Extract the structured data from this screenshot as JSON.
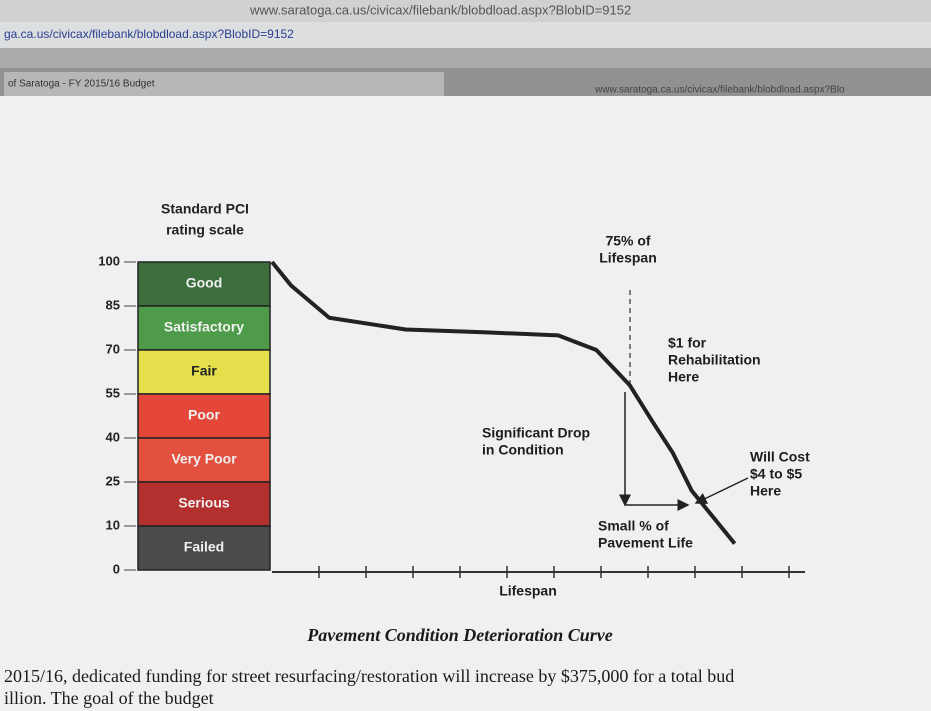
{
  "browser": {
    "url_top": "www.saratoga.ca.us/civicax/filebank/blobdload.aspx?BlobID=9152",
    "url_left": "ga.ca.us/civicax/filebank/blobdload.aspx?BlobID=9152",
    "tab": "of Saratoga - FY 2015/16 Budget",
    "url_right": "www.saratoga.ca.us/civicax/filebank/blobdload.aspx?Blo"
  },
  "chart_data": {
    "type": "line",
    "y_title": [
      "Standard PCI",
      "rating scale"
    ],
    "x_label": "Lifespan",
    "caption": "Pavement Condition Deterioration Curve",
    "yticks": [
      0,
      10,
      25,
      40,
      55,
      70,
      85,
      100
    ],
    "ylim": [
      0,
      100
    ],
    "xlim": [
      0,
      100
    ],
    "bands": [
      {
        "label": "Good",
        "low": 85,
        "high": 100,
        "color": "#3b6e3c"
      },
      {
        "label": "Satisfactory",
        "low": 70,
        "high": 85,
        "color": "#4e9c4a"
      },
      {
        "label": "Fair",
        "low": 55,
        "high": 70,
        "color": "#e6df4c"
      },
      {
        "label": "Poor",
        "low": 40,
        "high": 55,
        "color": "#e5463a"
      },
      {
        "label": "Very Poor",
        "low": 25,
        "high": 40,
        "color": "#e4503f"
      },
      {
        "label": "Serious",
        "low": 10,
        "high": 25,
        "color": "#b4302e"
      },
      {
        "label": "Failed",
        "low": 0,
        "high": 10,
        "color": "#4a4b4b"
      }
    ],
    "series": [
      {
        "color": "#222222",
        "x": [
          0,
          4,
          12,
          28,
          45,
          60,
          68,
          75,
          80,
          84,
          88,
          93,
          97
        ],
        "values": [
          100,
          92,
          81,
          77,
          76,
          75,
          70,
          58,
          45,
          35,
          22,
          12,
          6
        ]
      }
    ],
    "annotations": [
      {
        "lines": [
          "75% of",
          "Lifespan"
        ]
      },
      {
        "lines": [
          "$1 for",
          "Rehabilitation",
          "Here"
        ]
      },
      {
        "lines": [
          "Significant Drop",
          "in Condition"
        ]
      },
      {
        "lines": [
          "Small % of",
          "Pavement Life"
        ]
      },
      {
        "lines": [
          "Will Cost",
          "$4 to $5",
          "Here"
        ]
      }
    ]
  },
  "body": {
    "lines": [
      "2015/16, dedicated funding for street resurfacing/restoration will increase by $375,000 for a total bud",
      "illion.  The goal of the budget"
    ]
  }
}
